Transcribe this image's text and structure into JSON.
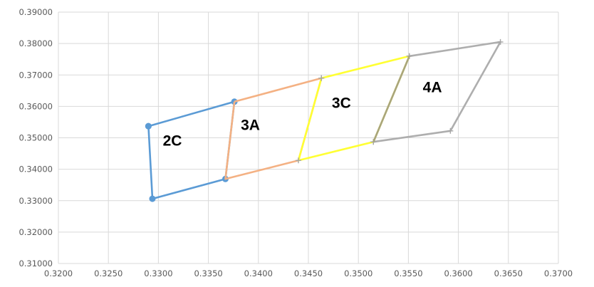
{
  "chart_data": {
    "type": "scatter",
    "title": "",
    "xlabel": "",
    "ylabel": "",
    "xlim": [
      0.32,
      0.37
    ],
    "ylim": [
      0.31,
      0.39
    ],
    "xticks": [
      "0.3200",
      "0.3250",
      "0.3300",
      "0.3350",
      "0.3400",
      "0.3450",
      "0.3500",
      "0.3550",
      "0.3600",
      "0.3650",
      "0.3700"
    ],
    "yticks": [
      "0.31000",
      "0.32000",
      "0.33000",
      "0.34000",
      "0.35000",
      "0.36000",
      "0.37000",
      "0.38000",
      "0.39000"
    ],
    "grid": true,
    "series": [
      {
        "id": "2C",
        "color": "#5B9BD5",
        "marker": "circle",
        "points": [
          [
            0.329,
            0.3537
          ],
          [
            0.3376,
            0.3615
          ],
          [
            0.3367,
            0.3369
          ],
          [
            0.3294,
            0.3306
          ],
          [
            0.329,
            0.3537
          ]
        ]
      },
      {
        "id": "3A",
        "color": "#F4B183",
        "marker": "none",
        "points": [
          [
            0.3376,
            0.3615
          ],
          [
            0.3463,
            0.369
          ],
          [
            0.344,
            0.3428
          ],
          [
            0.3367,
            0.3369
          ],
          [
            0.3376,
            0.3615
          ]
        ]
      },
      {
        "id": "3C",
        "color": "#FFFF33",
        "marker": "plus",
        "points": [
          [
            0.3463,
            0.369
          ],
          [
            0.3551,
            0.376
          ],
          [
            0.3515,
            0.3487
          ],
          [
            0.344,
            0.3428
          ],
          [
            0.3463,
            0.369
          ]
        ]
      },
      {
        "id": "4A",
        "color": "#AEAEAE",
        "marker": "plus",
        "points": [
          [
            0.3551,
            0.376
          ],
          [
            0.3642,
            0.3805
          ],
          [
            0.3592,
            0.3522
          ],
          [
            0.3515,
            0.3487
          ]
        ]
      },
      {
        "id": "4A-left-edge",
        "color": "#A9A57C",
        "marker": "none",
        "points": [
          [
            0.3551,
            0.376
          ],
          [
            0.3515,
            0.3487
          ]
        ]
      }
    ],
    "annotations": [
      {
        "text": "2C",
        "x": 0.3314,
        "y": 0.3475
      },
      {
        "text": "3A",
        "x": 0.3392,
        "y": 0.3525
      },
      {
        "text": "3C",
        "x": 0.3483,
        "y": 0.3595
      },
      {
        "text": "4A",
        "x": 0.3574,
        "y": 0.3645
      }
    ]
  }
}
